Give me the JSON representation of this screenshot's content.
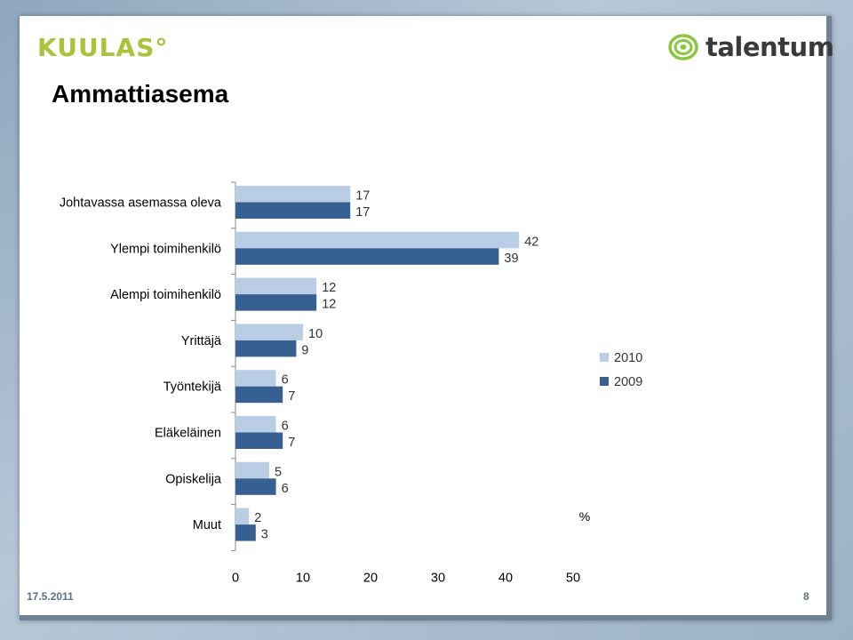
{
  "header": {
    "title": "Ammattiasema",
    "logo_left": "KUULAS°",
    "logo_right": "talentum"
  },
  "footer": {
    "date": "17.5.2011",
    "page": "8"
  },
  "chart_data": {
    "type": "bar",
    "orientation": "horizontal",
    "categories": [
      "Johtavassa asemassa oleva",
      "Ylempi toimihenkilö",
      "Alempi toimihenkilö",
      "Yrittäjä",
      "Työntekijä",
      "Eläkeläinen",
      "Opiskelija",
      "Muut"
    ],
    "series": [
      {
        "name": "2010",
        "values": [
          17,
          42,
          12,
          10,
          6,
          6,
          5,
          2
        ],
        "color": "#b9cde5"
      },
      {
        "name": "2009",
        "values": [
          17,
          39,
          12,
          9,
          7,
          7,
          6,
          3
        ],
        "color": "#376092"
      }
    ],
    "xlim": [
      0,
      50
    ],
    "xticks": [
      "0",
      "10",
      "20",
      "30",
      "40",
      "50"
    ],
    "unit_label": "%",
    "legend_position": "right",
    "grid": false
  }
}
